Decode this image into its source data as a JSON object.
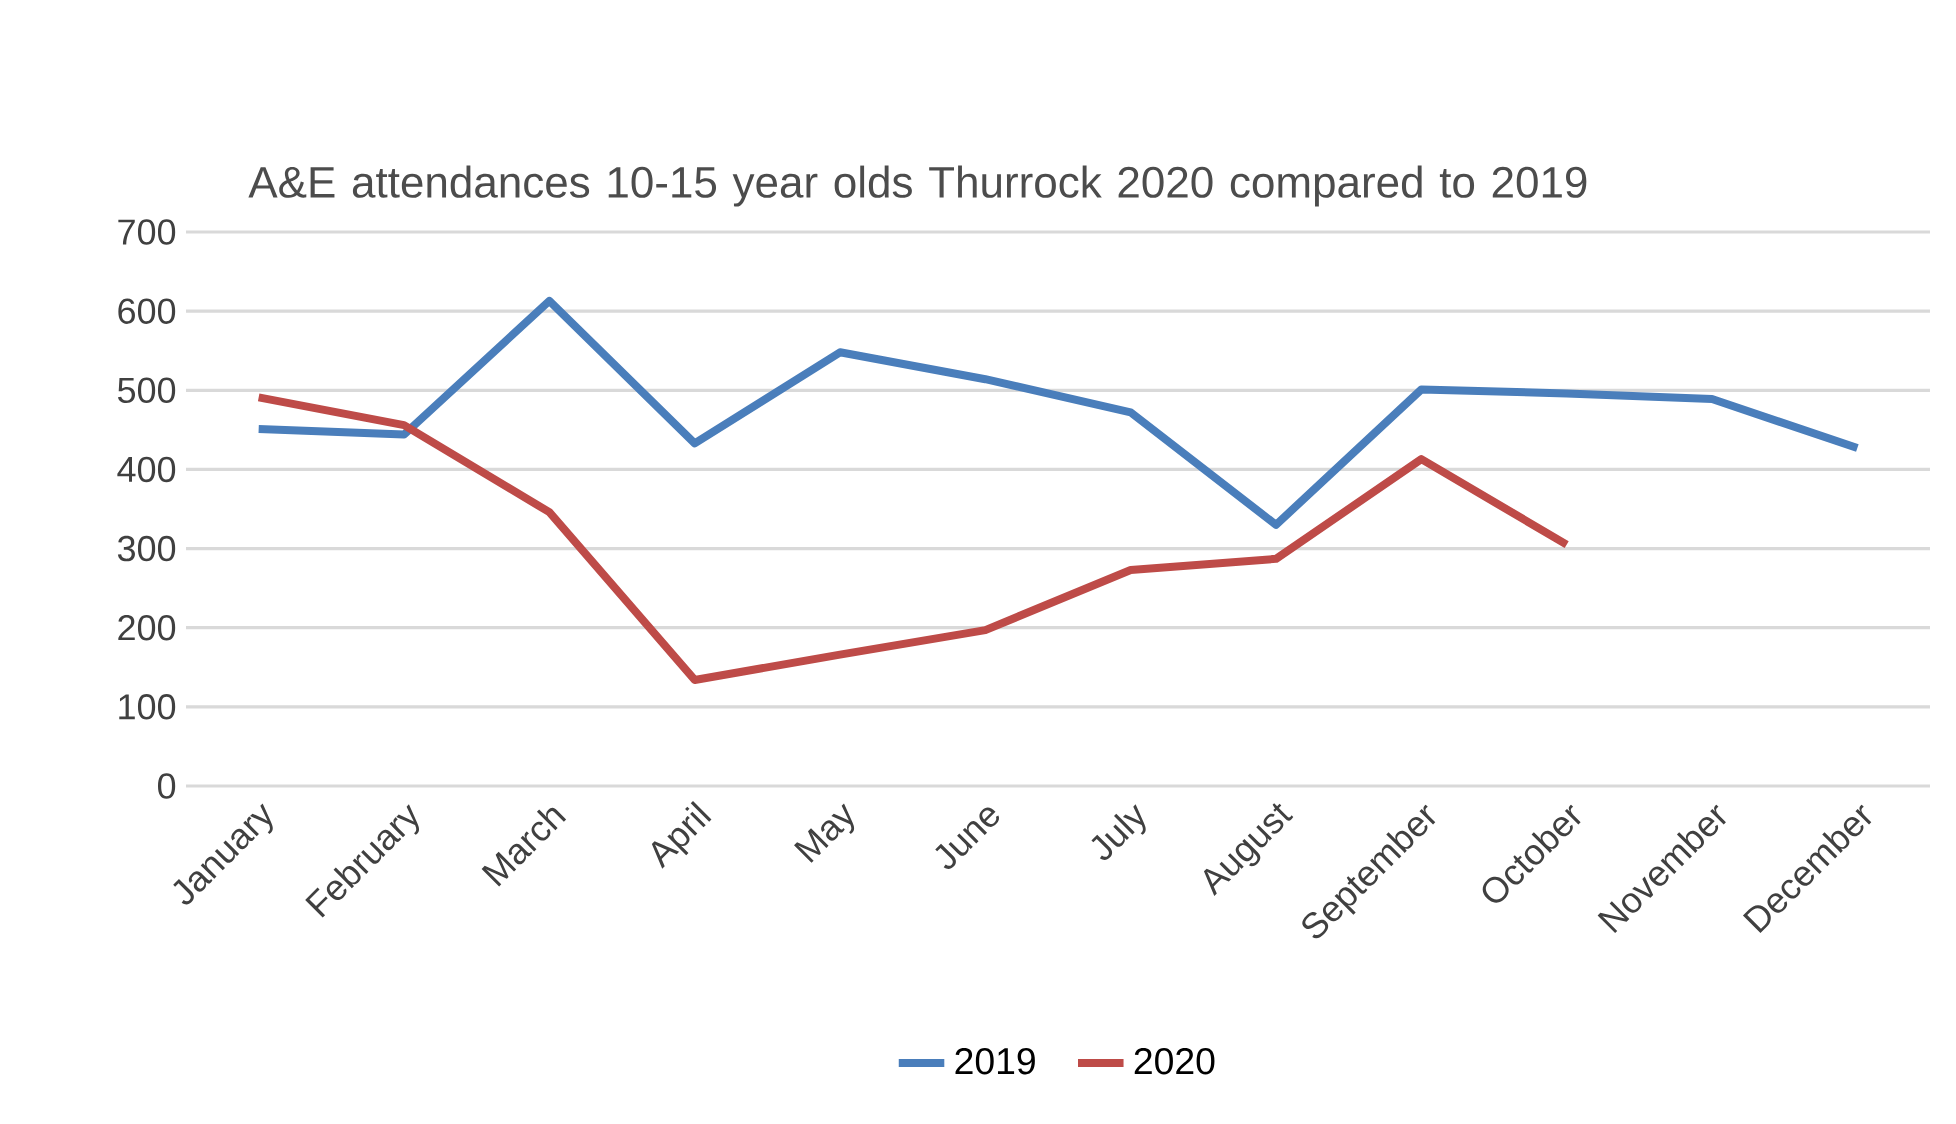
{
  "chart_data": {
    "type": "line",
    "title": "A&E attendances 10-15 year olds Thurrock 2020 compared to 2019",
    "categories": [
      "January",
      "February",
      "March",
      "April",
      "May",
      "June",
      "July",
      "August",
      "September",
      "October",
      "November",
      "December"
    ],
    "series": [
      {
        "name": "2019",
        "color": "#4a7ebb",
        "values": [
          451,
          444,
          613,
          433,
          548,
          514,
          472,
          330,
          501,
          496,
          489,
          427
        ]
      },
      {
        "name": "2020",
        "color": "#be4b48",
        "values": [
          491,
          456,
          346,
          134,
          166,
          197,
          273,
          287,
          413,
          305,
          null,
          null
        ]
      }
    ],
    "ylim": [
      0,
      700
    ],
    "yticks": [
      0,
      100,
      200,
      300,
      400,
      500,
      600,
      700
    ],
    "grid": "y",
    "legend": "bottom",
    "marker": "none",
    "line_style": "solid"
  }
}
